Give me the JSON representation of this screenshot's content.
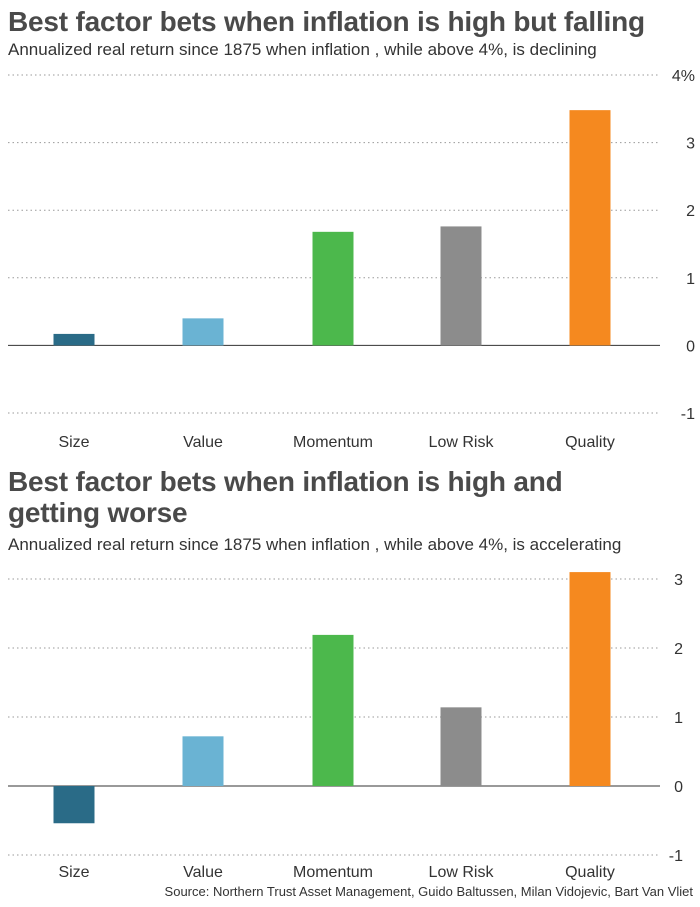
{
  "chart_data": [
    {
      "type": "bar",
      "title": "Best factor bets when inflation is high but falling",
      "subtitle": "Annualized real return since 1875 when inflation , while above 4%, is declining",
      "categories": [
        "Size",
        "Value",
        "Momentum",
        "Low Risk",
        "Quality"
      ],
      "values": [
        0.17,
        0.4,
        1.68,
        1.76,
        3.48
      ],
      "colors": [
        "#2a6b87",
        "#6ab3d3",
        "#4cb84c",
        "#8c8c8c",
        "#f5891f"
      ],
      "ylim": [
        -1,
        4
      ],
      "yticks": [
        -1,
        0,
        1,
        2,
        3,
        4
      ],
      "ytick_labels": [
        "-1",
        "0",
        "1",
        "2",
        "3",
        "4%"
      ],
      "grid": "horizontal-dotted",
      "axis_side": "right"
    },
    {
      "type": "bar",
      "title": "Best factor bets when inflation is high and getting worse",
      "subtitle": "Annualized real return since 1875 when inflation , while above 4%, is accelerating",
      "categories": [
        "Size",
        "Value",
        "Momentum",
        "Low Risk",
        "Quality"
      ],
      "values": [
        -0.54,
        0.72,
        2.19,
        1.14,
        3.1
      ],
      "colors": [
        "#2a6b87",
        "#6ab3d3",
        "#4cb84c",
        "#8c8c8c",
        "#f5891f"
      ],
      "ylim": [
        -1,
        3
      ],
      "yticks": [
        -1,
        0,
        1,
        2,
        3
      ],
      "ytick_labels": [
        "-1",
        "0",
        "1",
        "2",
        "3"
      ],
      "grid": "horizontal-dotted",
      "axis_side": "right"
    }
  ],
  "source": "Source: Northern Trust Asset Management, Guido Baltussen, Milan Vidojevic, Bart Van Vliet"
}
